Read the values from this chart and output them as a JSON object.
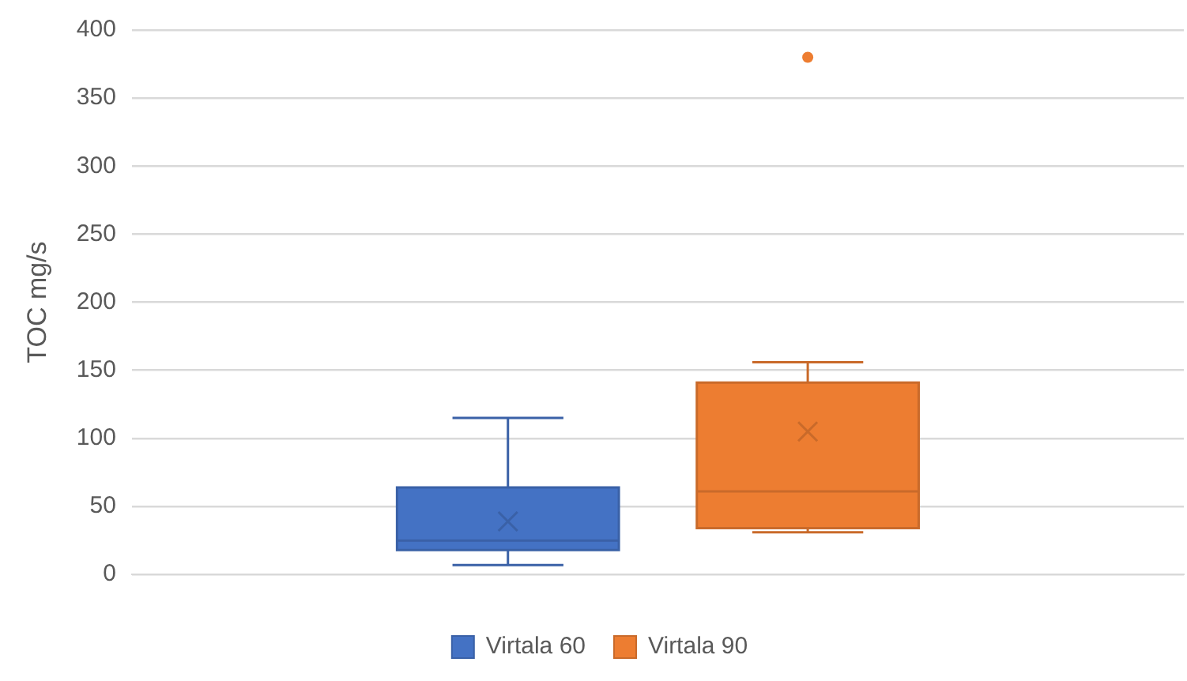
{
  "chart_data": {
    "type": "box",
    "ylabel": "TOC mg/s",
    "categories": [
      null
    ],
    "series": [
      {
        "name": "Virtala 60",
        "color": "#4472c4",
        "boxes": [
          {
            "low": 7,
            "q1": 18,
            "median": 25,
            "q3": 64,
            "high": 115,
            "mean": 39
          }
        ]
      },
      {
        "name": "Virtala 90",
        "color": "#ed7d31",
        "boxes": [
          {
            "low": 31,
            "q1": 34,
            "median": 61,
            "q3": 141,
            "high": 156,
            "mean": 105,
            "outliers": [
              380
            ]
          }
        ]
      }
    ],
    "ylim": [
      0,
      400
    ],
    "yticks": [
      0,
      50,
      100,
      150,
      200,
      250,
      300,
      350,
      400
    ],
    "grid": "y",
    "legend": "bottom"
  }
}
